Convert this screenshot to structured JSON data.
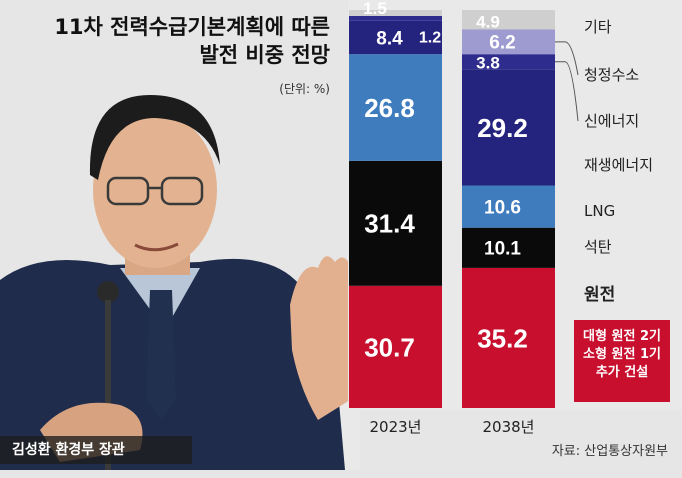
{
  "title_line1": "11차 전력수급기본계획에 따른",
  "title_line2": "발전 비중 전망",
  "unit": "(단위: %)",
  "caption": "김성환 환경부 장관",
  "source": "자료: 산업통상자원부",
  "callout": [
    "대형 원전 2기",
    "소형 원전 1기",
    "추가 건설"
  ],
  "chart_data": {
    "type": "bar",
    "stacked": true,
    "categories": [
      "2023년",
      "2038년"
    ],
    "series": [
      {
        "name": "원전",
        "color": "#c8102e",
        "values": [
          30.7,
          35.2
        ]
      },
      {
        "name": "석탄",
        "color": "#0a0a0a",
        "values": [
          31.4,
          10.1
        ]
      },
      {
        "name": "LNG",
        "color": "#3f7cbd",
        "values": [
          26.8,
          10.6
        ]
      },
      {
        "name": "재생에너지",
        "color": "#24237e",
        "values": [
          8.4,
          29.2
        ]
      },
      {
        "name": "신에너지",
        "color": "#2e2d8e",
        "values": [
          1.2,
          3.8
        ]
      },
      {
        "name": "청정수소",
        "color": "#9d9bcf",
        "values": [
          0,
          6.2
        ]
      },
      {
        "name": "기타",
        "color": "#cfcfcf",
        "values": [
          1.5,
          4.9
        ]
      }
    ],
    "ylim": [
      0,
      100
    ]
  }
}
